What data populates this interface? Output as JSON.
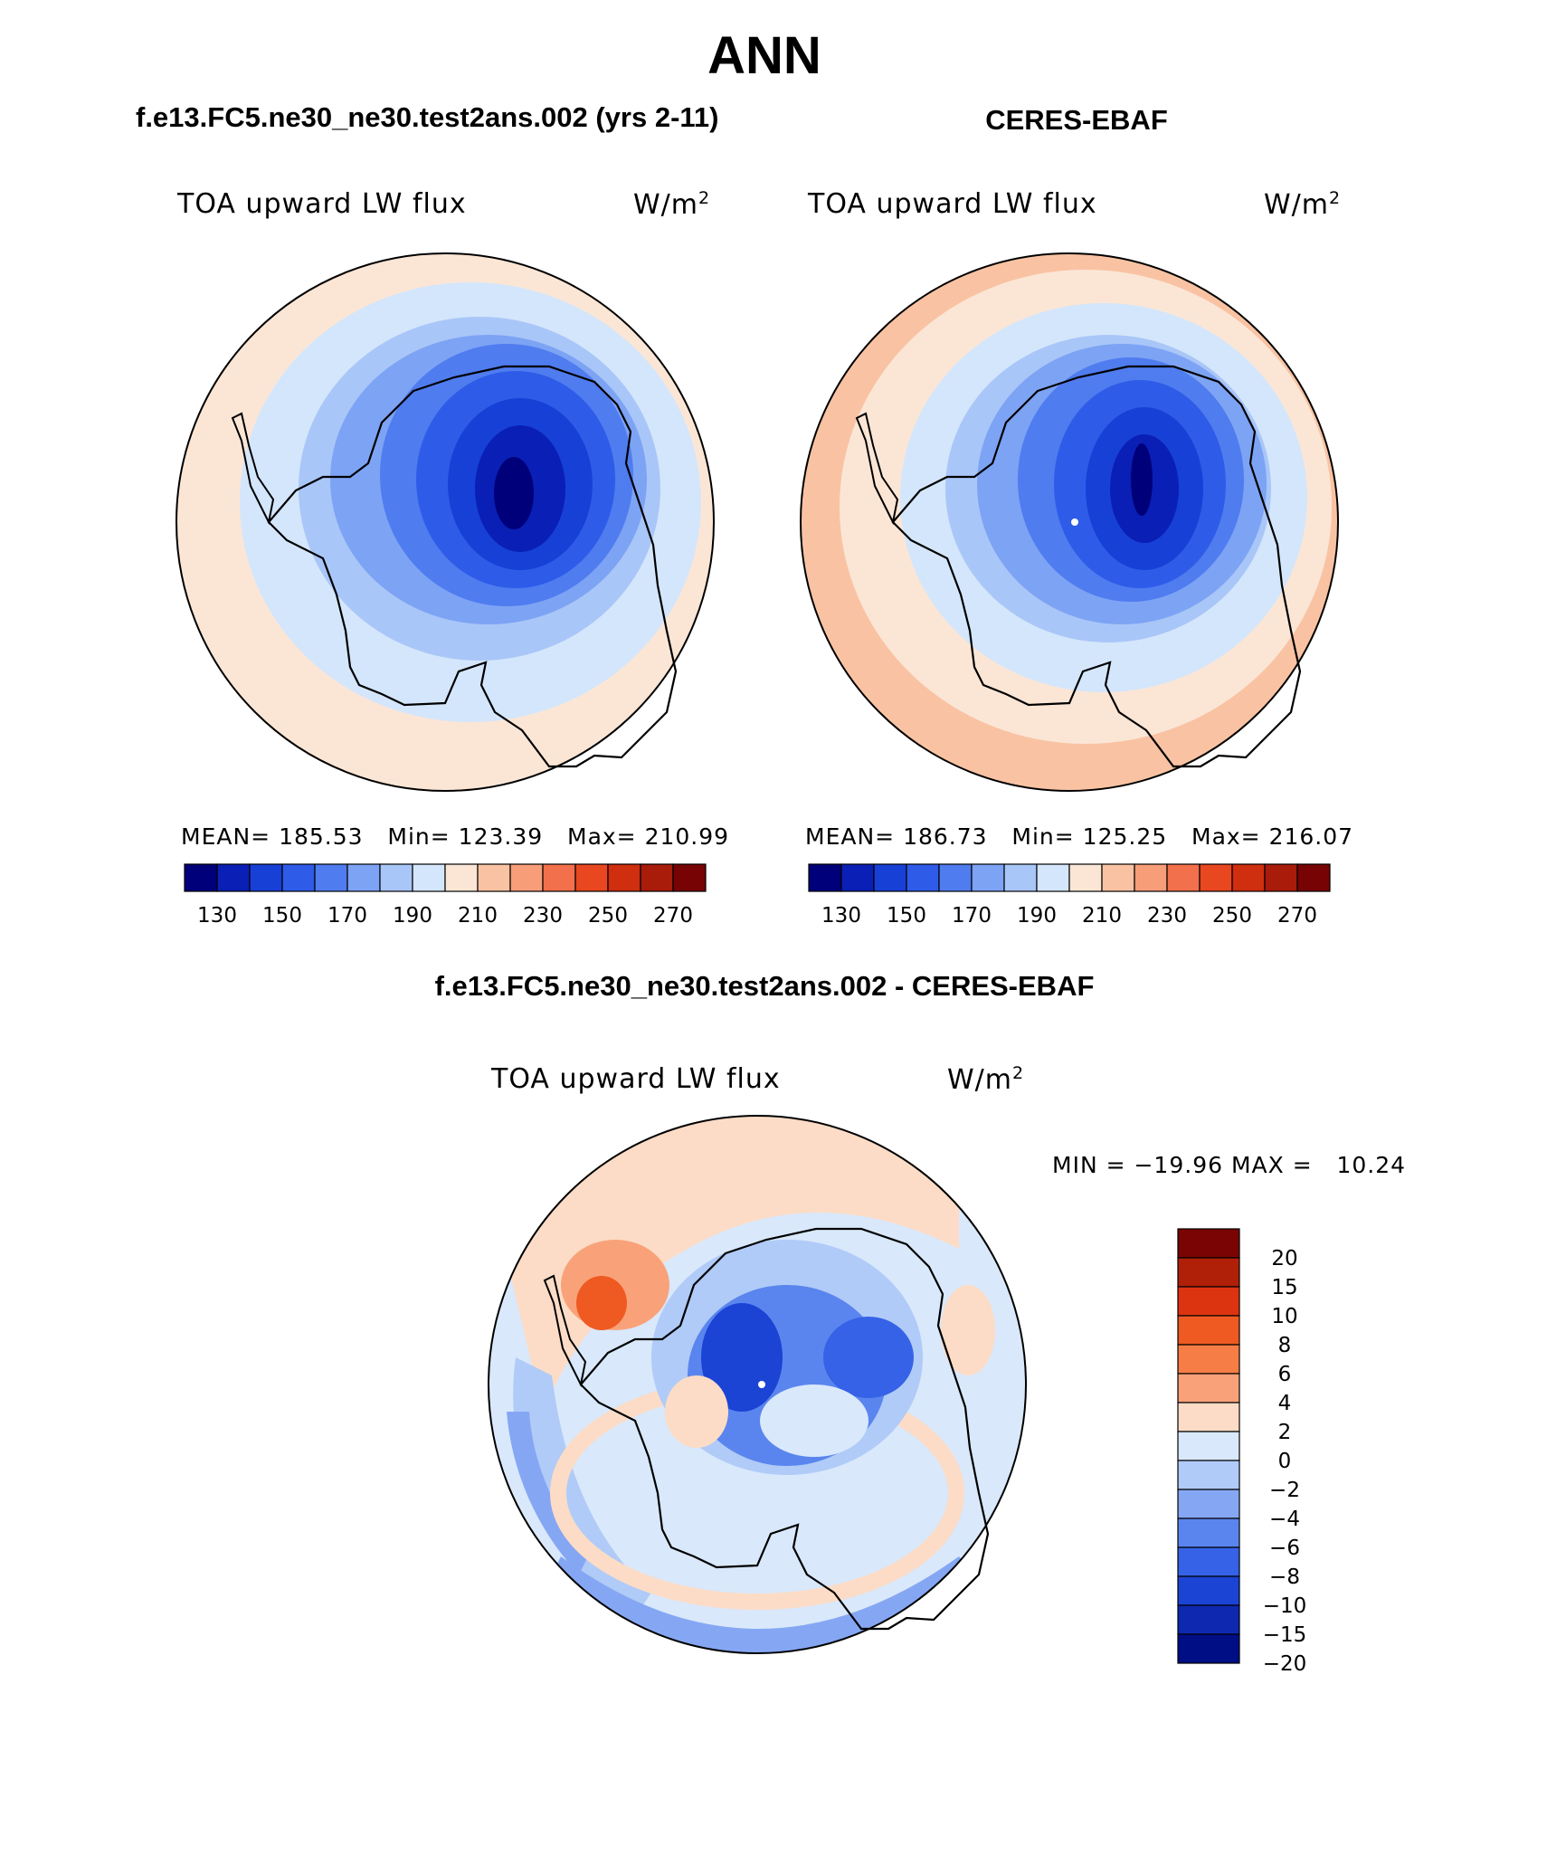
{
  "figure": {
    "main_title": "ANN",
    "panel_titles": {
      "model": "f.e13.FC5.ne30_ne30.test2ans.002 (yrs 2-11)",
      "obs": "CERES-EBAF",
      "diff": "f.e13.FC5.ne30_ne30.test2ans.002 - CERES-EBAF"
    }
  },
  "panels": {
    "model": {
      "variable": "TOA upward LW flux",
      "units": "W/m",
      "units_exp": "2",
      "stats": {
        "mean_label": "MEAN=",
        "mean": "185.53",
        "min_label": "Min=",
        "min": "123.39",
        "max_label": "Max=",
        "max": "210.99"
      }
    },
    "obs": {
      "variable": "TOA upward LW flux",
      "units": "W/m",
      "units_exp": "2",
      "stats": {
        "mean_label": "MEAN=",
        "mean": "186.73",
        "min_label": "Min=",
        "min": "125.25",
        "max_label": "Max=",
        "max": "216.07"
      }
    },
    "diff": {
      "variable": "TOA upward LW flux",
      "units": "W/m",
      "units_exp": "2",
      "stats_line": "MIN = −19.96 MAX =   10.24"
    }
  },
  "colorbar_abs": {
    "colors": [
      "#00007a",
      "#0a1fb5",
      "#1740d6",
      "#2e5ce8",
      "#4f7cef",
      "#7da3f4",
      "#a9c6f8",
      "#d4e6fb",
      "#fbe6d6",
      "#f9c3a3",
      "#f79d78",
      "#f2704b",
      "#e84720",
      "#cf2e0f",
      "#a81c09",
      "#780305"
    ],
    "tick_labels": [
      "130",
      "150",
      "170",
      "190",
      "210",
      "230",
      "250",
      "270"
    ]
  },
  "colorbar_diff": {
    "colors_top_to_bottom": [
      "#7a0404",
      "#b02008",
      "#dc3410",
      "#ef5a22",
      "#f77d47",
      "#f9a279",
      "#fcdcc6",
      "#d9e8fb",
      "#b0cbf7",
      "#85a7f3",
      "#5a85ee",
      "#3562e6",
      "#1b43d4",
      "#0f28b0",
      "#000e85"
    ],
    "tick_labels_top_to_bottom": [
      "20",
      "15",
      "10",
      "8",
      "6",
      "4",
      "2",
      "0",
      "−2",
      "−4",
      "−6",
      "−8",
      "−10",
      "−15",
      "−20"
    ]
  },
  "chart_data": [
    {
      "type": "heatmap",
      "title": "TOA upward LW flux",
      "subtitle": "f.e13.FC5.ne30_ne30.test2ans.002 (yrs 2-11)",
      "units": "W/m2",
      "projection": "south-polar stereographic",
      "mean": 185.53,
      "min": 123.39,
      "max": 210.99,
      "color_levels": [
        130,
        140,
        150,
        160,
        170,
        180,
        190,
        200,
        210,
        220,
        230,
        240,
        250,
        260,
        270
      ]
    },
    {
      "type": "heatmap",
      "title": "TOA upward LW flux",
      "subtitle": "CERES-EBAF",
      "units": "W/m2",
      "projection": "south-polar stereographic",
      "mean": 186.73,
      "min": 125.25,
      "max": 216.07,
      "color_levels": [
        130,
        140,
        150,
        160,
        170,
        180,
        190,
        200,
        210,
        220,
        230,
        240,
        250,
        260,
        270
      ]
    },
    {
      "type": "heatmap",
      "title": "TOA upward LW flux",
      "subtitle": "f.e13.FC5.ne30_ne30.test2ans.002 - CERES-EBAF",
      "units": "W/m2",
      "projection": "south-polar stereographic",
      "min": -19.96,
      "max": 10.24,
      "color_levels": [
        -20,
        -15,
        -10,
        -8,
        -6,
        -4,
        -2,
        0,
        2,
        4,
        6,
        8,
        10,
        15,
        20
      ]
    }
  ]
}
